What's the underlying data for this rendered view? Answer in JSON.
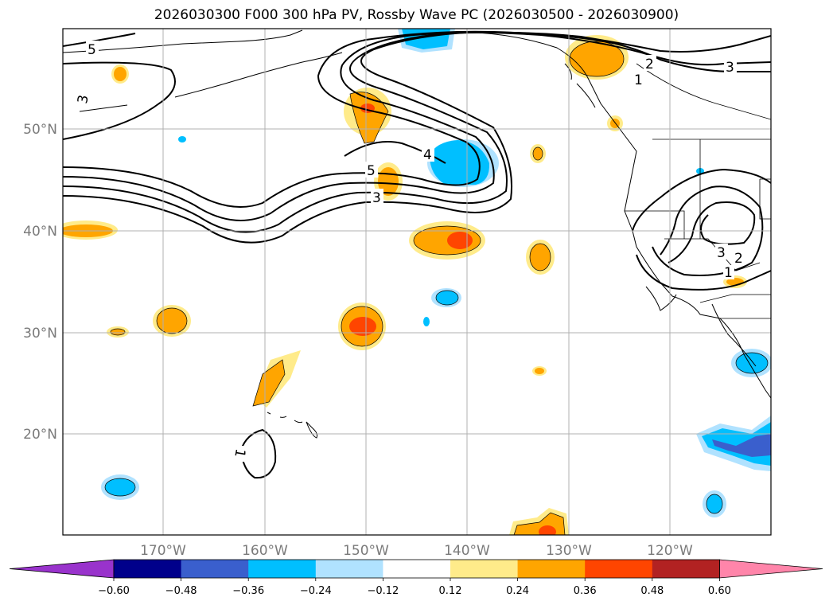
{
  "title": "2026030300 F000 300 hPa PV, Rossby Wave PC (2026030500 - 2026030900)",
  "map": {
    "lon_labels": [
      "170°W",
      "160°W",
      "150°W",
      "140°W",
      "130°W",
      "120°W"
    ],
    "lat_labels": [
      "50°N",
      "40°N",
      "30°N",
      "20°N"
    ],
    "contour_labels": [
      "5",
      "3",
      "5",
      "4",
      "3",
      "2",
      "1",
      "3",
      "3",
      "2",
      "1",
      "1"
    ]
  },
  "colorbar": {
    "tick_labels": [
      "−0.60",
      "−0.48",
      "−0.36",
      "−0.24",
      "−0.12",
      "0.12",
      "0.24",
      "0.36",
      "0.48",
      "0.60"
    ],
    "colors": [
      "#9933cc",
      "#00008b",
      "#3a5fcd",
      "#00bfff",
      "#b0e2ff",
      "#ffffff",
      "#ffeb8a",
      "#ffa500",
      "#ff4500",
      "#b22222",
      "#ff85aa"
    ]
  }
}
